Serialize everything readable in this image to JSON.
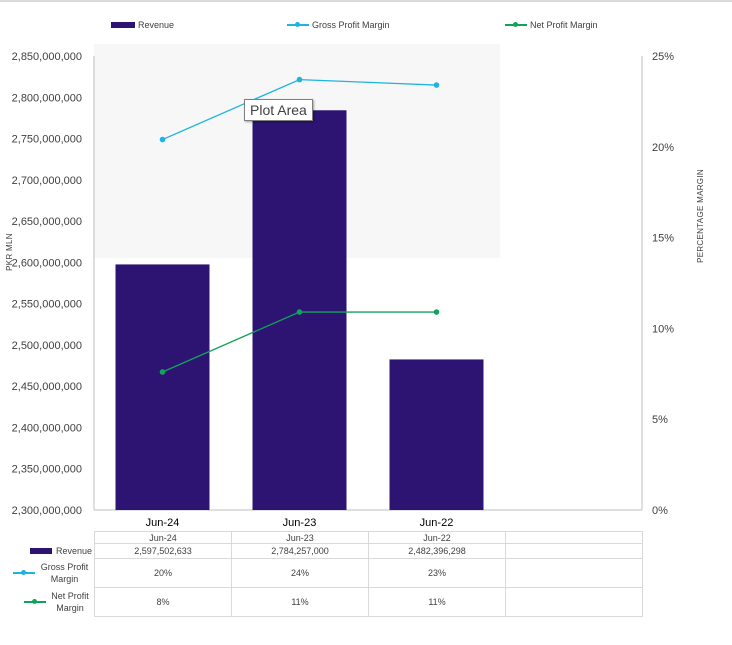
{
  "chart_data": {
    "type": "bar+line",
    "categories": [
      "Jun-24",
      "Jun-23",
      "Jun-22"
    ],
    "series": [
      {
        "name": "Revenue",
        "type": "bar",
        "axis": "left",
        "color": "#2d1472",
        "values": [
          2597502633,
          2784257000,
          2482396298
        ],
        "table_labels": [
          "2,597,502,633",
          "2,784,257,000",
          "2,482,396,298"
        ]
      },
      {
        "name": "Gross Profit Margin",
        "type": "line",
        "axis": "right",
        "color": "#1fb3e0",
        "values": [
          20.4,
          23.7,
          23.4
        ],
        "table_labels": [
          "20%",
          "24%",
          "23%"
        ]
      },
      {
        "name": "Net Profit Margin",
        "type": "line",
        "axis": "right",
        "color": "#12a35a",
        "values": [
          7.6,
          10.9,
          10.9
        ],
        "table_labels": [
          "8%",
          "11%",
          "11%"
        ]
      }
    ],
    "ylabel": "PKR MLN",
    "y2label": "PERCENTAGE MARGIN",
    "ylim": [
      2300000000,
      2850000000
    ],
    "ytick_step": 50000000,
    "yticks": [
      "2,300,000,000",
      "2,350,000,000",
      "2,400,000,000",
      "2,450,000,000",
      "2,500,000,000",
      "2,550,000,000",
      "2,600,000,000",
      "2,650,000,000",
      "2,700,000,000",
      "2,750,000,000",
      "2,800,000,000",
      "2,850,000,000"
    ],
    "y2lim": [
      0,
      25
    ],
    "y2ticks": [
      "0%",
      "5%",
      "10%",
      "15%",
      "20%",
      "25%"
    ],
    "legend": "top",
    "data_table": true,
    "grid": false
  },
  "table_key_labels": [
    "Revenue",
    "Gross Profit Margin",
    "Net Profit Margin"
  ],
  "tooltip": "Plot Area"
}
